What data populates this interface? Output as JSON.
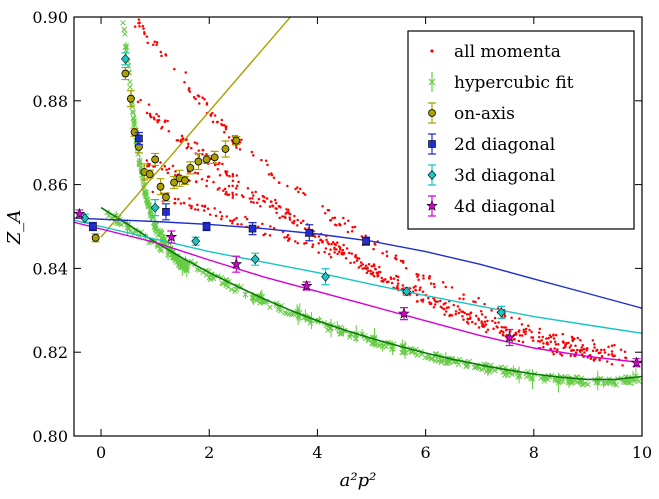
{
  "chart_data": {
    "type": "scatter",
    "title": "",
    "xlabel": "a²p²",
    "ylabel": "Z_A",
    "xlim": [
      -0.5,
      10
    ],
    "ylim": [
      0.8,
      0.9
    ],
    "x_ticks": [
      0,
      2,
      4,
      6,
      8,
      10
    ],
    "y_ticks": [
      0.8,
      0.82,
      0.84,
      0.86,
      0.88,
      0.9
    ],
    "x_tick_labels": [
      "0",
      "2",
      "4",
      "6",
      "8",
      "10"
    ],
    "y_tick_labels": [
      "0.80",
      "0.82",
      "0.84",
      "0.86",
      "0.88",
      "0.90"
    ],
    "grid": false,
    "legend_position": "top-right",
    "legend": [
      "all momenta",
      "hypercubic fit",
      "on-axis",
      "2d diagonal",
      "3d diagonal",
      "4d diagonal"
    ],
    "colors": {
      "all_momenta": "#ff0000",
      "hypercubic_fit": "#66cc44",
      "hypercubic_curve": "#0a7a0a",
      "on_axis": "#aaa000",
      "diag2": "#1f2ecc",
      "diag3": "#18c4c4",
      "diag4": "#d400d4"
    },
    "series": [
      {
        "name": "on-axis",
        "x": [
          -0.1,
          0.45,
          0.55,
          0.62,
          0.7,
          0.8,
          0.9,
          1.0,
          1.1,
          1.2,
          1.35,
          1.45,
          1.55,
          1.65,
          1.8,
          1.95,
          2.1,
          2.3,
          2.5
        ],
        "y": [
          0.8473,
          0.8865,
          0.8805,
          0.8725,
          0.869,
          0.863,
          0.8625,
          0.866,
          0.8595,
          0.857,
          0.8605,
          0.8615,
          0.861,
          0.864,
          0.8655,
          0.866,
          0.8665,
          0.8685,
          0.8705
        ],
        "fit_line": {
          "x": [
            0.0,
            3.5
          ],
          "y": [
            0.8475,
            0.9
          ]
        }
      },
      {
        "name": "2d diagonal",
        "x": [
          -0.15,
          0.7,
          1.2,
          1.95,
          2.8,
          3.85,
          4.9
        ],
        "y": [
          0.85,
          0.871,
          0.8535,
          0.85,
          0.8495,
          0.8485,
          0.8465
        ],
        "fit_curve": {
          "x": [
            -0.5,
            1,
            2,
            3,
            4,
            5,
            6,
            7,
            8,
            9,
            10
          ],
          "y": [
            0.852,
            0.8512,
            0.8505,
            0.8495,
            0.8482,
            0.8465,
            0.844,
            0.841,
            0.8375,
            0.834,
            0.8305
          ]
        }
      },
      {
        "name": "3d diagonal",
        "x": [
          -0.3,
          0.45,
          1.0,
          1.75,
          2.85,
          4.15,
          5.65,
          7.4
        ],
        "y": [
          0.852,
          0.89,
          0.8545,
          0.8465,
          0.8422,
          0.838,
          0.8345,
          0.8295
        ],
        "fit_curve": {
          "x": [
            -0.5,
            1,
            2,
            3,
            4,
            5,
            6,
            7,
            8,
            9,
            10
          ],
          "y": [
            0.8515,
            0.847,
            0.844,
            0.8415,
            0.839,
            0.8362,
            0.8335,
            0.831,
            0.8285,
            0.8265,
            0.8245
          ]
        }
      },
      {
        "name": "4d diagonal",
        "x": [
          -0.4,
          1.3,
          2.5,
          3.8,
          5.6,
          7.55,
          9.9
        ],
        "y": [
          0.853,
          0.8475,
          0.841,
          0.8358,
          0.8292,
          0.8235,
          0.8175
        ],
        "fit_curve": {
          "x": [
            -0.5,
            1,
            2,
            3,
            4,
            5,
            6,
            7,
            8,
            9,
            10
          ],
          "y": [
            0.851,
            0.8462,
            0.842,
            0.838,
            0.8345,
            0.831,
            0.8275,
            0.824,
            0.821,
            0.819,
            0.8175
          ]
        }
      },
      {
        "name": "hypercubic fit",
        "curve": {
          "x": [
            0.0,
            0.5,
            1,
            1.5,
            2,
            2.5,
            3,
            3.5,
            4,
            4.5,
            5,
            5.5,
            6,
            6.5,
            7,
            7.5,
            8,
            8.5,
            9,
            9.5,
            10
          ],
          "y": [
            0.8545,
            0.8505,
            0.8463,
            0.8425,
            0.839,
            0.8358,
            0.8328,
            0.83,
            0.8275,
            0.8253,
            0.8233,
            0.8215,
            0.8198,
            0.8183,
            0.817,
            0.8158,
            0.8148,
            0.814,
            0.8135,
            0.8135,
            0.8142
          ]
        },
        "steep_branch": {
          "x": [
            0.4,
            0.5,
            0.6,
            0.7,
            0.8,
            0.9,
            1.0,
            1.2,
            1.4,
            1.6
          ],
          "y": [
            0.9,
            0.888,
            0.876,
            0.866,
            0.859,
            0.854,
            0.85,
            0.846,
            0.842,
            0.84
          ]
        }
      }
    ],
    "all_momenta_bands": [
      {
        "start": [
          0.45,
          0.902
        ],
        "end": [
          2.5,
          0.87
        ],
        "tail": [
          9.9,
          0.82
        ]
      },
      {
        "start": [
          0.6,
          0.88
        ],
        "end": [
          2.4,
          0.862
        ],
        "tail": [
          9.0,
          0.822
        ]
      },
      {
        "start": [
          0.8,
          0.866
        ],
        "end": [
          3.2,
          0.855
        ],
        "tail": [
          9.5,
          0.819
        ]
      },
      {
        "start": [
          1.0,
          0.858
        ],
        "end": [
          4.5,
          0.843
        ],
        "tail": [
          9.8,
          0.818
        ]
      }
    ]
  }
}
